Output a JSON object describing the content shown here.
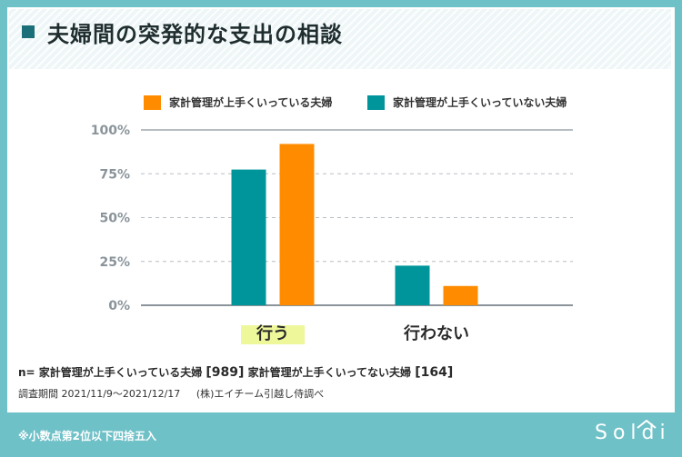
{
  "title": "夫婦間の突発的な支出の相談",
  "chart_data": {
    "type": "bar",
    "categories": [
      "行う",
      "行わない"
    ],
    "series": [
      {
        "name": "家計管理が上手くいっていない夫婦",
        "color": "#00959b",
        "values": [
          77.4,
          22.6
        ]
      },
      {
        "name": "家計管理が上手くいっている夫婦",
        "color": "#ff8c00",
        "values": [
          92.0,
          11.0
        ]
      }
    ],
    "legend_order": [
      1,
      0
    ],
    "yticks": [
      "0%",
      "25%",
      "50%",
      "75%",
      "100%"
    ],
    "ytick_values": [
      0,
      25,
      50,
      75,
      100
    ],
    "ylim": [
      0,
      100
    ],
    "highlight_category": "行う",
    "highlight_color": "#eef79a"
  },
  "footer": {
    "n_prefix": "n=",
    "n_good_label": "家計管理が上手くいっている夫婦",
    "n_good_value": "[989]",
    "n_bad_label": "家計管理が上手くいってない夫婦",
    "n_bad_value": "[164]",
    "survey_period": "調査期間 2021/11/9〜2021/12/17",
    "survey_org": "(株)エイチーム引越し侍調べ",
    "rounding_note": "※小数点第2位以下四捨五入"
  },
  "brand": {
    "logo_text": "Soldi",
    "accent": "#6fc1c8",
    "title_square": "#1a6f78"
  }
}
